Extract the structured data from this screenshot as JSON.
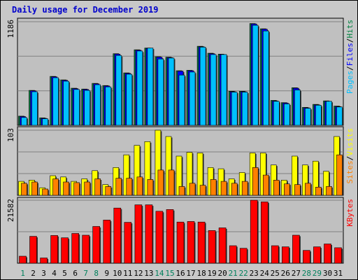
{
  "title": "Daily usage for December 2019",
  "chart_data": [
    {
      "type": "bar",
      "name": "pages-files-hits",
      "ymax_label": "1186",
      "ylim": [
        0,
        1186
      ],
      "categories": [
        "1",
        "2",
        "3",
        "4",
        "5",
        "6",
        "7",
        "8",
        "9",
        "10",
        "11",
        "12",
        "13",
        "14",
        "15",
        "16",
        "17",
        "18",
        "19",
        "20",
        "21",
        "22",
        "23",
        "24",
        "25",
        "26",
        "27",
        "28",
        "29",
        "30",
        "31"
      ],
      "series": [
        {
          "name": "Hits",
          "color": "#008040",
          "values": [
            105,
            400,
            85,
            560,
            520,
            425,
            415,
            480,
            455,
            820,
            600,
            865,
            885,
            785,
            780,
            625,
            630,
            905,
            825,
            815,
            390,
            390,
            1165,
            1105,
            285,
            260,
            430,
            205,
            240,
            280,
            220
          ]
        },
        {
          "name": "Files",
          "color": "#0000ff",
          "values": [
            100,
            395,
            80,
            555,
            515,
            420,
            410,
            475,
            450,
            815,
            595,
            860,
            880,
            780,
            775,
            620,
            625,
            900,
            820,
            810,
            385,
            385,
            1160,
            1100,
            280,
            255,
            425,
            200,
            235,
            275,
            215
          ]
        },
        {
          "name": "Pages",
          "color": "#00c0ff",
          "values": [
            90,
            385,
            75,
            545,
            505,
            410,
            400,
            465,
            440,
            800,
            585,
            850,
            885,
            760,
            770,
            575,
            610,
            895,
            810,
            810,
            380,
            380,
            1145,
            1080,
            275,
            245,
            405,
            195,
            230,
            275,
            210
          ]
        }
      ],
      "legend": [
        {
          "text": "Hits",
          "color": "#008040"
        },
        {
          "text": "Files",
          "color": "#0000ff"
        },
        {
          "text": "Pages",
          "color": "#00c0ff"
        }
      ]
    },
    {
      "type": "bar",
      "name": "visits-sites",
      "ymax_label": "103",
      "ylim": [
        0,
        103
      ],
      "categories": [
        "1",
        "2",
        "3",
        "4",
        "5",
        "6",
        "7",
        "8",
        "9",
        "10",
        "11",
        "12",
        "13",
        "14",
        "15",
        "16",
        "17",
        "18",
        "19",
        "20",
        "21",
        "22",
        "23",
        "24",
        "25",
        "26",
        "27",
        "28",
        "29",
        "30",
        "31"
      ],
      "series": [
        {
          "name": "Visits",
          "color": "#ffff00",
          "values": [
            22,
            24,
            12,
            31,
            29,
            22,
            26,
            39,
            17,
            44,
            64,
            79,
            85,
            103,
            93,
            62,
            68,
            67,
            44,
            42,
            26,
            36,
            67,
            67,
            48,
            24,
            62,
            48,
            54,
            38,
            93
          ]
        },
        {
          "name": "Sites",
          "color": "#ff8000",
          "values": [
            19,
            21,
            10,
            26,
            21,
            20,
            21,
            26,
            14,
            27,
            27,
            29,
            25,
            40,
            40,
            14,
            19,
            16,
            25,
            22,
            19,
            22,
            44,
            32,
            24,
            18,
            17,
            19,
            13,
            14,
            64
          ]
        }
      ],
      "legend": [
        {
          "text": "Visits",
          "color": "#ffff00"
        },
        {
          "text": "Sites",
          "color": "#ff8000"
        }
      ]
    },
    {
      "type": "bar",
      "name": "kbytes",
      "ymax_label": "21582",
      "ylim": [
        0,
        21582
      ],
      "categories": [
        "1",
        "2",
        "3",
        "4",
        "5",
        "6",
        "7",
        "8",
        "9",
        "10",
        "11",
        "12",
        "13",
        "14",
        "15",
        "16",
        "17",
        "18",
        "19",
        "20",
        "21",
        "22",
        "23",
        "24",
        "25",
        "26",
        "27",
        "28",
        "29",
        "30",
        "31"
      ],
      "series": [
        {
          "name": "KBytes",
          "color": "#ff0000",
          "values": [
            2400,
            9200,
            1800,
            9500,
            8700,
            10200,
            9600,
            12600,
            14800,
            18900,
            14000,
            20000,
            20000,
            17800,
            18400,
            14100,
            14300,
            14100,
            11200,
            12100,
            6000,
            5100,
            21582,
            21000,
            6000,
            5600,
            9600,
            4400,
            5600,
            6600,
            5300
          ]
        }
      ],
      "legend": [
        {
          "text": "KBytes",
          "color": "#ff0000"
        }
      ]
    }
  ],
  "day_label_colors": {
    "weekday": "#000000",
    "weekend": "#00805c"
  },
  "weekend_days": [
    "1",
    "7",
    "8",
    "14",
    "15",
    "21",
    "22",
    "28",
    "29"
  ],
  "legend_separator": "/",
  "colors": {
    "background": "#c8c8c8",
    "panel": "#c0c0c0",
    "grid": "#808080",
    "shadow": "#333333"
  }
}
